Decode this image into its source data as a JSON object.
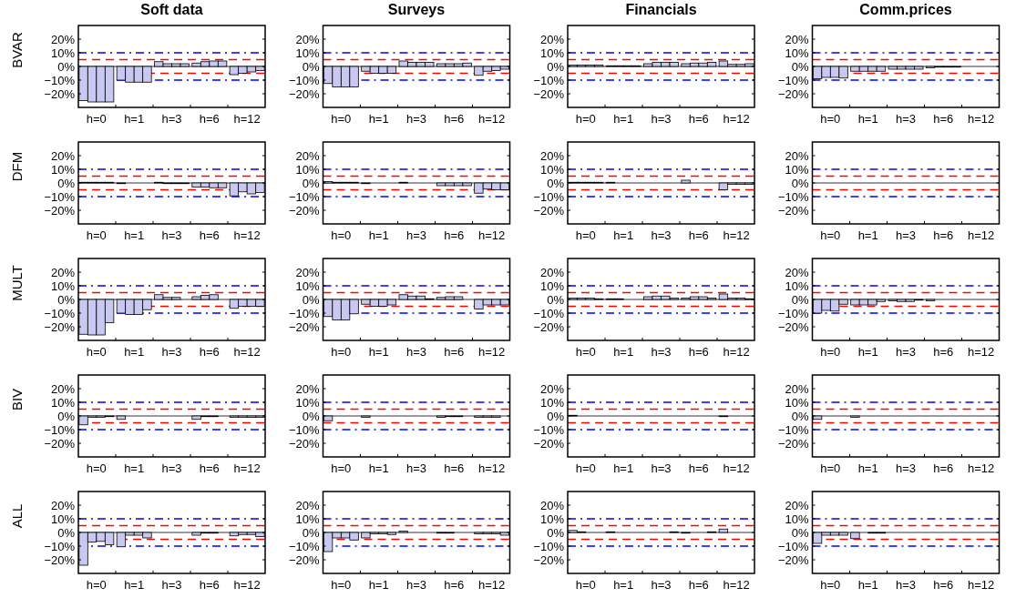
{
  "chart_data": [
    {
      "type": "bar",
      "title": "Soft data",
      "ylabel": "BVAR",
      "categories": [
        "h=0",
        "h=1",
        "h=3",
        "h=6",
        "h=12"
      ],
      "series": [
        {
          "color": "#c8c8f0",
          "values": [
            -25,
            -10,
            3.5,
            2.5,
            -6
          ]
        },
        {
          "color": "#c8c8f0",
          "values": [
            -26,
            -11.5,
            2,
            3.5,
            -5
          ]
        },
        {
          "color": "#c8c8f0",
          "values": [
            -26,
            -11.5,
            2,
            4,
            -4
          ]
        },
        {
          "color": "#c8c8f0",
          "values": [
            -26,
            -11.5,
            2,
            4,
            -3
          ]
        }
      ],
      "ylim": [
        -30,
        30
      ],
      "yticks": [
        {
          "value": -20,
          "label": "−20%"
        },
        {
          "value": -10,
          "label": "−10%"
        },
        {
          "value": 0,
          "label": "0%"
        },
        {
          "value": 10,
          "label": "10%"
        },
        {
          "value": 20,
          "label": "20%"
        }
      ],
      "ref_lines": [
        {
          "axis": "y",
          "value": 10,
          "color": "#0000ff",
          "line_style": "dashdot"
        },
        {
          "axis": "y",
          "value": 5,
          "color": "#ff0000",
          "line_style": "dashed"
        },
        {
          "axis": "y",
          "value": -5,
          "color": "#ff0000",
          "line_style": "dashed"
        },
        {
          "axis": "y",
          "value": -10,
          "color": "#0000ff",
          "line_style": "dashdot"
        }
      ]
    },
    {
      "type": "bar",
      "title": "Surveys",
      "categories": [
        "h=0",
        "h=1",
        "h=3",
        "h=6",
        "h=12"
      ],
      "series": [
        {
          "color": "#c8c8f0",
          "values": [
            -12.5,
            -3.5,
            4,
            2,
            -6.5
          ]
        },
        {
          "color": "#c8c8f0",
          "values": [
            -15,
            -5,
            3,
            2,
            -3.5
          ]
        },
        {
          "color": "#c8c8f0",
          "values": [
            -15,
            -5,
            3,
            2,
            -3
          ]
        },
        {
          "color": "#c8c8f0",
          "values": [
            -15,
            -5,
            3,
            2.5,
            -2
          ]
        }
      ],
      "ylim": [
        -30,
        30
      ],
      "yticks": [
        {
          "value": -20,
          "label": "−20%"
        },
        {
          "value": -10,
          "label": "−10%"
        },
        {
          "value": 0,
          "label": "0%"
        },
        {
          "value": 10,
          "label": "10%"
        },
        {
          "value": 20,
          "label": "20%"
        }
      ],
      "ref_lines": [
        {
          "axis": "y",
          "value": 10,
          "color": "#0000ff",
          "line_style": "dashdot"
        },
        {
          "axis": "y",
          "value": 5,
          "color": "#ff0000",
          "line_style": "dashed"
        },
        {
          "axis": "y",
          "value": -5,
          "color": "#ff0000",
          "line_style": "dashed"
        },
        {
          "axis": "y",
          "value": -10,
          "color": "#0000ff",
          "line_style": "dashdot"
        }
      ]
    },
    {
      "type": "bar",
      "title": "Financials",
      "categories": [
        "h=0",
        "h=1",
        "h=3",
        "h=6",
        "h=12"
      ],
      "series": [
        {
          "color": "#c8c8f0",
          "values": [
            1,
            0.5,
            2,
            2,
            4
          ]
        },
        {
          "color": "#c8c8f0",
          "values": [
            1,
            0.5,
            3,
            2.5,
            1.5
          ]
        },
        {
          "color": "#c8c8f0",
          "values": [
            1,
            0.5,
            3,
            2.5,
            1.5
          ]
        },
        {
          "color": "#c8c8f0",
          "values": [
            1,
            0.5,
            3,
            3,
            2
          ]
        }
      ],
      "ylim": [
        -30,
        30
      ],
      "yticks": [
        {
          "value": -20,
          "label": "−20%"
        },
        {
          "value": -10,
          "label": "−10%"
        },
        {
          "value": 0,
          "label": "0%"
        },
        {
          "value": 10,
          "label": "10%"
        },
        {
          "value": 20,
          "label": "20%"
        }
      ],
      "ref_lines": [
        {
          "axis": "y",
          "value": 10,
          "color": "#0000ff",
          "line_style": "dashdot"
        },
        {
          "axis": "y",
          "value": 5,
          "color": "#ff0000",
          "line_style": "dashed"
        },
        {
          "axis": "y",
          "value": -5,
          "color": "#ff0000",
          "line_style": "dashed"
        },
        {
          "axis": "y",
          "value": -10,
          "color": "#0000ff",
          "line_style": "dashdot"
        }
      ]
    },
    {
      "type": "bar",
      "title": "Comm.prices",
      "categories": [
        "h=0",
        "h=1",
        "h=3",
        "h=6",
        "h=12"
      ],
      "series": [
        {
          "color": "#c8c8f0",
          "values": [
            -9,
            -3.5,
            -2,
            -1,
            0
          ]
        },
        {
          "color": "#c8c8f0",
          "values": [
            -8,
            -3.5,
            -2,
            -0.5,
            0
          ]
        },
        {
          "color": "#c8c8f0",
          "values": [
            -8,
            -3.5,
            -2,
            -0.5,
            0
          ]
        },
        {
          "color": "#c8c8f0",
          "values": [
            -8.5,
            -3.5,
            -2,
            -0.5,
            0
          ]
        }
      ],
      "ylim": [
        -30,
        30
      ],
      "yticks": [
        {
          "value": -20,
          "label": "−20%"
        },
        {
          "value": -10,
          "label": "−10%"
        },
        {
          "value": 0,
          "label": "0%"
        },
        {
          "value": 10,
          "label": "10%"
        },
        {
          "value": 20,
          "label": "20%"
        }
      ],
      "ref_lines": [
        {
          "axis": "y",
          "value": 10,
          "color": "#0000ff",
          "line_style": "dashdot"
        },
        {
          "axis": "y",
          "value": 5,
          "color": "#ff0000",
          "line_style": "dashed"
        },
        {
          "axis": "y",
          "value": -5,
          "color": "#ff0000",
          "line_style": "dashed"
        },
        {
          "axis": "y",
          "value": -10,
          "color": "#0000ff",
          "line_style": "dashdot"
        }
      ]
    },
    {
      "type": "bar",
      "ylabel": "DFM",
      "categories": [
        "h=0",
        "h=1",
        "h=3",
        "h=6",
        "h=12"
      ],
      "series": [
        {
          "color": "#c8c8f0",
          "values": [
            0.5,
            -0.5,
            0.5,
            -3,
            -9.5
          ]
        },
        {
          "color": "#c8c8f0",
          "values": [
            0.5,
            0,
            -0.5,
            -3,
            -6.5
          ]
        },
        {
          "color": "#c8c8f0",
          "values": [
            0.5,
            0,
            -0.5,
            -3.5,
            -8
          ]
        },
        {
          "color": "#c8c8f0",
          "values": [
            0.5,
            0,
            -0.5,
            -3.5,
            -7
          ]
        }
      ],
      "ylim": [
        -30,
        30
      ],
      "yticks": [
        {
          "value": -20,
          "label": "−20%"
        },
        {
          "value": -10,
          "label": "−10%"
        },
        {
          "value": 0,
          "label": "0%"
        },
        {
          "value": 10,
          "label": "10%"
        },
        {
          "value": 20,
          "label": "20%"
        }
      ],
      "ref_lines": [
        {
          "axis": "y",
          "value": 10,
          "color": "#0000ff",
          "line_style": "dashdot"
        },
        {
          "axis": "y",
          "value": 5,
          "color": "#ff0000",
          "line_style": "dashed"
        },
        {
          "axis": "y",
          "value": -5,
          "color": "#ff0000",
          "line_style": "dashed"
        },
        {
          "axis": "y",
          "value": -10,
          "color": "#0000ff",
          "line_style": "dashdot"
        }
      ]
    },
    {
      "type": "bar",
      "categories": [
        "h=0",
        "h=1",
        "h=3",
        "h=6",
        "h=12"
      ],
      "series": [
        {
          "color": "#c8c8f0",
          "values": [
            1,
            -0.5,
            0.5,
            -2,
            -7.5
          ]
        },
        {
          "color": "#c8c8f0",
          "values": [
            0.5,
            0,
            0,
            -2,
            -4.5
          ]
        },
        {
          "color": "#c8c8f0",
          "values": [
            0.5,
            0,
            0,
            -2,
            -5
          ]
        },
        {
          "color": "#c8c8f0",
          "values": [
            0.5,
            0,
            0,
            -2,
            -5
          ]
        }
      ],
      "ylim": [
        -30,
        30
      ],
      "yticks": [
        {
          "value": -20,
          "label": "−20%"
        },
        {
          "value": -10,
          "label": "−10%"
        },
        {
          "value": 0,
          "label": "0%"
        },
        {
          "value": 10,
          "label": "10%"
        },
        {
          "value": 20,
          "label": "20%"
        }
      ],
      "ref_lines": [
        {
          "axis": "y",
          "value": 10,
          "color": "#0000ff",
          "line_style": "dashdot"
        },
        {
          "axis": "y",
          "value": 5,
          "color": "#ff0000",
          "line_style": "dashed"
        },
        {
          "axis": "y",
          "value": -5,
          "color": "#ff0000",
          "line_style": "dashed"
        },
        {
          "axis": "y",
          "value": -10,
          "color": "#0000ff",
          "line_style": "dashdot"
        }
      ]
    },
    {
      "type": "bar",
      "categories": [
        "h=0",
        "h=1",
        "h=3",
        "h=6",
        "h=12"
      ],
      "series": [
        {
          "color": "#c8c8f0",
          "values": [
            0.5,
            0.5,
            0,
            2,
            -5
          ]
        },
        {
          "color": "#c8c8f0",
          "values": [
            0.5,
            0,
            0,
            0,
            -1
          ]
        },
        {
          "color": "#c8c8f0",
          "values": [
            0.5,
            0,
            0,
            0,
            -1
          ]
        },
        {
          "color": "#c8c8f0",
          "values": [
            0.5,
            0,
            0,
            0,
            -1
          ]
        }
      ],
      "ylim": [
        -30,
        30
      ],
      "yticks": [
        {
          "value": -20,
          "label": "−20%"
        },
        {
          "value": -10,
          "label": "−10%"
        },
        {
          "value": 0,
          "label": "0%"
        },
        {
          "value": 10,
          "label": "10%"
        },
        {
          "value": 20,
          "label": "20%"
        }
      ],
      "ref_lines": [
        {
          "axis": "y",
          "value": 10,
          "color": "#0000ff",
          "line_style": "dashdot"
        },
        {
          "axis": "y",
          "value": 5,
          "color": "#ff0000",
          "line_style": "dashed"
        },
        {
          "axis": "y",
          "value": -5,
          "color": "#ff0000",
          "line_style": "dashed"
        },
        {
          "axis": "y",
          "value": -10,
          "color": "#0000ff",
          "line_style": "dashdot"
        }
      ]
    },
    {
      "type": "bar",
      "categories": [
        "h=0",
        "h=1",
        "h=3",
        "h=6",
        "h=12"
      ],
      "series": [
        {
          "color": "#c8c8f0",
          "values": [
            0,
            0,
            0,
            0,
            0
          ]
        },
        {
          "color": "#c8c8f0",
          "values": [
            0,
            0,
            0,
            0,
            0
          ]
        },
        {
          "color": "#c8c8f0",
          "values": [
            0,
            0,
            0,
            0,
            0
          ]
        },
        {
          "color": "#c8c8f0",
          "values": [
            0,
            0,
            0,
            0,
            0
          ]
        }
      ],
      "ylim": [
        -30,
        30
      ],
      "yticks": [
        {
          "value": -20,
          "label": "−20%"
        },
        {
          "value": -10,
          "label": "−10%"
        },
        {
          "value": 0,
          "label": "0%"
        },
        {
          "value": 10,
          "label": "10%"
        },
        {
          "value": 20,
          "label": "20%"
        }
      ],
      "ref_lines": [
        {
          "axis": "y",
          "value": 10,
          "color": "#0000ff",
          "line_style": "dashdot"
        },
        {
          "axis": "y",
          "value": 5,
          "color": "#ff0000",
          "line_style": "dashed"
        },
        {
          "axis": "y",
          "value": -5,
          "color": "#ff0000",
          "line_style": "dashed"
        },
        {
          "axis": "y",
          "value": -10,
          "color": "#0000ff",
          "line_style": "dashdot"
        }
      ]
    },
    {
      "type": "bar",
      "ylabel": "MULT",
      "categories": [
        "h=0",
        "h=1",
        "h=3",
        "h=6",
        "h=12"
      ],
      "series": [
        {
          "color": "#c8c8f0",
          "values": [
            -25.5,
            -10,
            3.5,
            2,
            -6.5
          ]
        },
        {
          "color": "#c8c8f0",
          "values": [
            -26,
            -11,
            1.5,
            3,
            -5
          ]
        },
        {
          "color": "#c8c8f0",
          "values": [
            -26,
            -11,
            1.5,
            3.5,
            -5
          ]
        },
        {
          "color": "#c8c8f0",
          "values": [
            -17,
            -7.5,
            0,
            0,
            -5
          ]
        }
      ],
      "ylim": [
        -30,
        30
      ],
      "yticks": [
        {
          "value": -20,
          "label": "−20%"
        },
        {
          "value": -10,
          "label": "−10%"
        },
        {
          "value": 0,
          "label": "0%"
        },
        {
          "value": 10,
          "label": "10%"
        },
        {
          "value": 20,
          "label": "20%"
        }
      ],
      "ref_lines": [
        {
          "axis": "y",
          "value": 10,
          "color": "#0000ff",
          "line_style": "dashdot"
        },
        {
          "axis": "y",
          "value": 5,
          "color": "#ff0000",
          "line_style": "dashed"
        },
        {
          "axis": "y",
          "value": -5,
          "color": "#ff0000",
          "line_style": "dashed"
        },
        {
          "axis": "y",
          "value": -10,
          "color": "#0000ff",
          "line_style": "dashdot"
        }
      ]
    },
    {
      "type": "bar",
      "categories": [
        "h=0",
        "h=1",
        "h=3",
        "h=6",
        "h=12"
      ],
      "series": [
        {
          "color": "#c8c8f0",
          "values": [
            -12.5,
            -3.5,
            3.5,
            1.5,
            -7
          ]
        },
        {
          "color": "#c8c8f0",
          "values": [
            -15,
            -5,
            2.5,
            2,
            -4
          ]
        },
        {
          "color": "#c8c8f0",
          "values": [
            -15,
            -5,
            2.5,
            2,
            -4
          ]
        },
        {
          "color": "#c8c8f0",
          "values": [
            -10.5,
            -4,
            0.5,
            0,
            -4
          ]
        }
      ],
      "ylim": [
        -30,
        30
      ],
      "yticks": [
        {
          "value": -20,
          "label": "−20%"
        },
        {
          "value": -10,
          "label": "−10%"
        },
        {
          "value": 0,
          "label": "0%"
        },
        {
          "value": 10,
          "label": "10%"
        },
        {
          "value": 20,
          "label": "20%"
        }
      ],
      "ref_lines": [
        {
          "axis": "y",
          "value": 10,
          "color": "#0000ff",
          "line_style": "dashdot"
        },
        {
          "axis": "y",
          "value": 5,
          "color": "#ff0000",
          "line_style": "dashed"
        },
        {
          "axis": "y",
          "value": -5,
          "color": "#ff0000",
          "line_style": "dashed"
        },
        {
          "axis": "y",
          "value": -10,
          "color": "#0000ff",
          "line_style": "dashdot"
        }
      ]
    },
    {
      "type": "bar",
      "categories": [
        "h=0",
        "h=1",
        "h=3",
        "h=6",
        "h=12"
      ],
      "series": [
        {
          "color": "#c8c8f0",
          "values": [
            1,
            0.5,
            2,
            1,
            4
          ]
        },
        {
          "color": "#c8c8f0",
          "values": [
            1,
            0.5,
            2.5,
            2,
            1
          ]
        },
        {
          "color": "#c8c8f0",
          "values": [
            1,
            0,
            2.5,
            2,
            1
          ]
        },
        {
          "color": "#c8c8f0",
          "values": [
            0.5,
            0,
            1,
            1,
            0.5
          ]
        }
      ],
      "ylim": [
        -30,
        30
      ],
      "yticks": [
        {
          "value": -20,
          "label": "−20%"
        },
        {
          "value": -10,
          "label": "−10%"
        },
        {
          "value": 0,
          "label": "0%"
        },
        {
          "value": 10,
          "label": "10%"
        },
        {
          "value": 20,
          "label": "20%"
        }
      ],
      "ref_lines": [
        {
          "axis": "y",
          "value": 10,
          "color": "#0000ff",
          "line_style": "dashdot"
        },
        {
          "axis": "y",
          "value": 5,
          "color": "#ff0000",
          "line_style": "dashed"
        },
        {
          "axis": "y",
          "value": -5,
          "color": "#ff0000",
          "line_style": "dashed"
        },
        {
          "axis": "y",
          "value": -10,
          "color": "#0000ff",
          "line_style": "dashdot"
        }
      ]
    },
    {
      "type": "bar",
      "categories": [
        "h=0",
        "h=1",
        "h=3",
        "h=6",
        "h=12"
      ],
      "series": [
        {
          "color": "#c8c8f0",
          "values": [
            -10,
            -4,
            -1,
            -1,
            0
          ]
        },
        {
          "color": "#c8c8f0",
          "values": [
            -8,
            -4,
            -1.5,
            0,
            0
          ]
        },
        {
          "color": "#c8c8f0",
          "values": [
            -8.5,
            -4,
            -1.5,
            0,
            0
          ]
        },
        {
          "color": "#c8c8f0",
          "values": [
            -3.5,
            -1.5,
            -0.5,
            0,
            0
          ]
        }
      ],
      "ylim": [
        -30,
        30
      ],
      "yticks": [
        {
          "value": -20,
          "label": "−20%"
        },
        {
          "value": -10,
          "label": "−10%"
        },
        {
          "value": 0,
          "label": "0%"
        },
        {
          "value": 10,
          "label": "10%"
        },
        {
          "value": 20,
          "label": "20%"
        }
      ],
      "ref_lines": [
        {
          "axis": "y",
          "value": 10,
          "color": "#0000ff",
          "line_style": "dashdot"
        },
        {
          "axis": "y",
          "value": 5,
          "color": "#ff0000",
          "line_style": "dashed"
        },
        {
          "axis": "y",
          "value": -5,
          "color": "#ff0000",
          "line_style": "dashed"
        },
        {
          "axis": "y",
          "value": -10,
          "color": "#0000ff",
          "line_style": "dashdot"
        }
      ]
    },
    {
      "type": "bar",
      "ylabel": "BIV",
      "categories": [
        "h=0",
        "h=1",
        "h=3",
        "h=6",
        "h=12"
      ],
      "series": [
        {
          "color": "#c8c8f0",
          "values": [
            -6.5,
            -2.5,
            0,
            -2.5,
            -1
          ]
        },
        {
          "color": "#c8c8f0",
          "values": [
            -1,
            0,
            0,
            -0.5,
            -1
          ]
        },
        {
          "color": "#c8c8f0",
          "values": [
            -1,
            0,
            0,
            -0.5,
            -1
          ]
        },
        {
          "color": "#c8c8f0",
          "values": [
            -0.5,
            0,
            0,
            0,
            -1
          ]
        }
      ],
      "ylim": [
        -30,
        30
      ],
      "yticks": [
        {
          "value": -20,
          "label": "−20%"
        },
        {
          "value": -10,
          "label": "−10%"
        },
        {
          "value": 0,
          "label": "0%"
        },
        {
          "value": 10,
          "label": "10%"
        },
        {
          "value": 20,
          "label": "20%"
        }
      ],
      "ref_lines": [
        {
          "axis": "y",
          "value": 10,
          "color": "#0000ff",
          "line_style": "dashdot"
        },
        {
          "axis": "y",
          "value": 5,
          "color": "#ff0000",
          "line_style": "dashed"
        },
        {
          "axis": "y",
          "value": -5,
          "color": "#ff0000",
          "line_style": "dashed"
        },
        {
          "axis": "y",
          "value": -10,
          "color": "#0000ff",
          "line_style": "dashdot"
        }
      ]
    },
    {
      "type": "bar",
      "categories": [
        "h=0",
        "h=1",
        "h=3",
        "h=6",
        "h=12"
      ],
      "series": [
        {
          "color": "#c8c8f0",
          "values": [
            -3.5,
            -1,
            0,
            -1,
            -1
          ]
        },
        {
          "color": "#c8c8f0",
          "values": [
            0,
            0,
            0,
            -0.5,
            -1
          ]
        },
        {
          "color": "#c8c8f0",
          "values": [
            0,
            0,
            0,
            -0.5,
            -1
          ]
        },
        {
          "color": "#c8c8f0",
          "values": [
            0,
            0,
            0,
            0,
            0
          ]
        }
      ],
      "ylim": [
        -30,
        30
      ],
      "yticks": [
        {
          "value": -20,
          "label": "−20%"
        },
        {
          "value": -10,
          "label": "−10%"
        },
        {
          "value": 0,
          "label": "0%"
        },
        {
          "value": 10,
          "label": "10%"
        },
        {
          "value": 20,
          "label": "20%"
        }
      ],
      "ref_lines": [
        {
          "axis": "y",
          "value": 10,
          "color": "#0000ff",
          "line_style": "dashdot"
        },
        {
          "axis": "y",
          "value": 5,
          "color": "#ff0000",
          "line_style": "dashed"
        },
        {
          "axis": "y",
          "value": -5,
          "color": "#ff0000",
          "line_style": "dashed"
        },
        {
          "axis": "y",
          "value": -10,
          "color": "#0000ff",
          "line_style": "dashdot"
        }
      ]
    },
    {
      "type": "bar",
      "categories": [
        "h=0",
        "h=1",
        "h=3",
        "h=6",
        "h=12"
      ],
      "series": [
        {
          "color": "#c8c8f0",
          "values": [
            0.5,
            0,
            0,
            0,
            -0.5
          ]
        },
        {
          "color": "#c8c8f0",
          "values": [
            0,
            0,
            0,
            0,
            0
          ]
        },
        {
          "color": "#c8c8f0",
          "values": [
            0,
            0,
            0,
            0,
            0
          ]
        },
        {
          "color": "#c8c8f0",
          "values": [
            0,
            0,
            0,
            0,
            0
          ]
        }
      ],
      "ylim": [
        -30,
        30
      ],
      "yticks": [
        {
          "value": -20,
          "label": "−20%"
        },
        {
          "value": -10,
          "label": "−10%"
        },
        {
          "value": 0,
          "label": "0%"
        },
        {
          "value": 10,
          "label": "10%"
        },
        {
          "value": 20,
          "label": "20%"
        }
      ],
      "ref_lines": [
        {
          "axis": "y",
          "value": 10,
          "color": "#0000ff",
          "line_style": "dashdot"
        },
        {
          "axis": "y",
          "value": 5,
          "color": "#ff0000",
          "line_style": "dashed"
        },
        {
          "axis": "y",
          "value": -5,
          "color": "#ff0000",
          "line_style": "dashed"
        },
        {
          "axis": "y",
          "value": -10,
          "color": "#0000ff",
          "line_style": "dashdot"
        }
      ]
    },
    {
      "type": "bar",
      "categories": [
        "h=0",
        "h=1",
        "h=3",
        "h=6",
        "h=12"
      ],
      "series": [
        {
          "color": "#c8c8f0",
          "values": [
            -2.5,
            -1,
            0,
            0,
            0
          ]
        },
        {
          "color": "#c8c8f0",
          "values": [
            0,
            0,
            0,
            0,
            0
          ]
        },
        {
          "color": "#c8c8f0",
          "values": [
            0,
            0,
            0,
            0,
            0
          ]
        },
        {
          "color": "#c8c8f0",
          "values": [
            0,
            0,
            0,
            0,
            0
          ]
        }
      ],
      "ylim": [
        -30,
        30
      ],
      "yticks": [
        {
          "value": -20,
          "label": "−20%"
        },
        {
          "value": -10,
          "label": "−10%"
        },
        {
          "value": 0,
          "label": "0%"
        },
        {
          "value": 10,
          "label": "10%"
        },
        {
          "value": 20,
          "label": "20%"
        }
      ],
      "ref_lines": [
        {
          "axis": "y",
          "value": 10,
          "color": "#0000ff",
          "line_style": "dashdot"
        },
        {
          "axis": "y",
          "value": 5,
          "color": "#ff0000",
          "line_style": "dashed"
        },
        {
          "axis": "y",
          "value": -5,
          "color": "#ff0000",
          "line_style": "dashed"
        },
        {
          "axis": "y",
          "value": -10,
          "color": "#0000ff",
          "line_style": "dashdot"
        }
      ]
    },
    {
      "type": "bar",
      "ylabel": "ALL",
      "categories": [
        "h=0",
        "h=1",
        "h=3",
        "h=6",
        "h=12"
      ],
      "series": [
        {
          "color": "#c8c8f0",
          "values": [
            -24,
            -10.5,
            0,
            -2,
            -2.5
          ]
        },
        {
          "color": "#c8c8f0",
          "values": [
            -7,
            -2,
            0,
            -0.5,
            -1.5
          ]
        },
        {
          "color": "#c8c8f0",
          "values": [
            -6.5,
            -2,
            0,
            -0.5,
            -1.5
          ]
        },
        {
          "color": "#c8c8f0",
          "values": [
            -9,
            -4,
            0,
            0,
            -3
          ]
        }
      ],
      "ylim": [
        -30,
        30
      ],
      "yticks": [
        {
          "value": -20,
          "label": "−20%"
        },
        {
          "value": -10,
          "label": "−10%"
        },
        {
          "value": 0,
          "label": "0%"
        },
        {
          "value": 10,
          "label": "10%"
        },
        {
          "value": 20,
          "label": "20%"
        }
      ],
      "ref_lines": [
        {
          "axis": "y",
          "value": 10,
          "color": "#0000ff",
          "line_style": "dashdot"
        },
        {
          "axis": "y",
          "value": 5,
          "color": "#ff0000",
          "line_style": "dashed"
        },
        {
          "axis": "y",
          "value": -5,
          "color": "#ff0000",
          "line_style": "dashed"
        },
        {
          "axis": "y",
          "value": -10,
          "color": "#0000ff",
          "line_style": "dashdot"
        }
      ]
    },
    {
      "type": "bar",
      "categories": [
        "h=0",
        "h=1",
        "h=3",
        "h=6",
        "h=12"
      ],
      "series": [
        {
          "color": "#c8c8f0",
          "values": [
            -14,
            -4,
            1,
            -0.5,
            -1
          ]
        },
        {
          "color": "#c8c8f0",
          "values": [
            -4,
            -1,
            0,
            -0.5,
            -1
          ]
        },
        {
          "color": "#c8c8f0",
          "values": [
            -4,
            -1,
            0,
            0,
            -1
          ]
        },
        {
          "color": "#c8c8f0",
          "values": [
            -5.5,
            -1.5,
            0,
            0,
            -2
          ]
        }
      ],
      "ylim": [
        -30,
        30
      ],
      "yticks": [
        {
          "value": -20,
          "label": "−20%"
        },
        {
          "value": -10,
          "label": "−10%"
        },
        {
          "value": 0,
          "label": "0%"
        },
        {
          "value": 10,
          "label": "10%"
        },
        {
          "value": 20,
          "label": "20%"
        }
      ],
      "ref_lines": [
        {
          "axis": "y",
          "value": 10,
          "color": "#0000ff",
          "line_style": "dashdot"
        },
        {
          "axis": "y",
          "value": 5,
          "color": "#ff0000",
          "line_style": "dashed"
        },
        {
          "axis": "y",
          "value": -5,
          "color": "#ff0000",
          "line_style": "dashed"
        },
        {
          "axis": "y",
          "value": -10,
          "color": "#0000ff",
          "line_style": "dashdot"
        }
      ]
    },
    {
      "type": "bar",
      "categories": [
        "h=0",
        "h=1",
        "h=3",
        "h=6",
        "h=12"
      ],
      "series": [
        {
          "color": "#c8c8f0",
          "values": [
            1.5,
            0.5,
            0,
            -0.5,
            2.5
          ]
        },
        {
          "color": "#c8c8f0",
          "values": [
            0.5,
            0,
            0,
            0,
            0
          ]
        },
        {
          "color": "#c8c8f0",
          "values": [
            0,
            0,
            0,
            0,
            0
          ]
        },
        {
          "color": "#c8c8f0",
          "values": [
            0,
            0,
            0.5,
            0.5,
            0
          ]
        }
      ],
      "ylim": [
        -30,
        30
      ],
      "yticks": [
        {
          "value": -20,
          "label": "−20%"
        },
        {
          "value": -10,
          "label": "−10%"
        },
        {
          "value": 0,
          "label": "0%"
        },
        {
          "value": 10,
          "label": "10%"
        },
        {
          "value": 20,
          "label": "20%"
        }
      ],
      "ref_lines": [
        {
          "axis": "y",
          "value": 10,
          "color": "#0000ff",
          "line_style": "dashdot"
        },
        {
          "axis": "y",
          "value": 5,
          "color": "#ff0000",
          "line_style": "dashed"
        },
        {
          "axis": "y",
          "value": -5,
          "color": "#ff0000",
          "line_style": "dashed"
        },
        {
          "axis": "y",
          "value": -10,
          "color": "#0000ff",
          "line_style": "dashdot"
        }
      ]
    },
    {
      "type": "bar",
      "categories": [
        "h=0",
        "h=1",
        "h=3",
        "h=6",
        "h=12"
      ],
      "series": [
        {
          "color": "#c8c8f0",
          "values": [
            -8,
            -4.5,
            0,
            0,
            0
          ]
        },
        {
          "color": "#c8c8f0",
          "values": [
            -2,
            0,
            0,
            0,
            0
          ]
        },
        {
          "color": "#c8c8f0",
          "values": [
            -2,
            -0.5,
            0,
            0,
            0
          ]
        },
        {
          "color": "#c8c8f0",
          "values": [
            -2,
            -0.5,
            0,
            0,
            0
          ]
        }
      ],
      "ylim": [
        -30,
        30
      ],
      "yticks": [
        {
          "value": -20,
          "label": "−20%"
        },
        {
          "value": -10,
          "label": "−10%"
        },
        {
          "value": 0,
          "label": "0%"
        },
        {
          "value": 10,
          "label": "10%"
        },
        {
          "value": 20,
          "label": "20%"
        }
      ],
      "ref_lines": [
        {
          "axis": "y",
          "value": 10,
          "color": "#0000ff",
          "line_style": "dashdot"
        },
        {
          "axis": "y",
          "value": 5,
          "color": "#ff0000",
          "line_style": "dashed"
        },
        {
          "axis": "y",
          "value": -5,
          "color": "#ff0000",
          "line_style": "dashed"
        },
        {
          "axis": "y",
          "value": -10,
          "color": "#0000ff",
          "line_style": "dashdot"
        }
      ]
    }
  ]
}
